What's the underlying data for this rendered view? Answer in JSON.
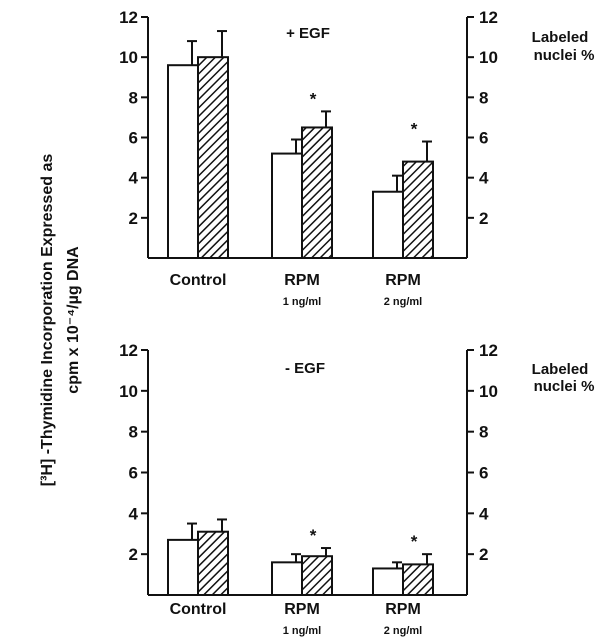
{
  "ylabel_line1": "[³H] -Thymidine Incorporation Expressed as",
  "ylabel_line2": "cpm x 10⁻⁴/µg DNA",
  "colors": {
    "ink": "#111111",
    "open_bar": "#ffffff",
    "hatched_bar": "#ffffff"
  },
  "chart_data": [
    {
      "type": "bar",
      "title": "+ EGF",
      "right_axis_label": [
        "Labeled",
        "nuclei %"
      ],
      "ylim": [
        0,
        12
      ],
      "yticks": [
        2,
        4,
        6,
        8,
        10,
        12
      ],
      "right_yticks": [
        2,
        4,
        6,
        8,
        10,
        12
      ],
      "categories": [
        "Control",
        "RPM",
        "RPM"
      ],
      "category_sublabels": [
        "",
        "1 ng/ml",
        "2 ng/ml"
      ],
      "series": [
        {
          "style": "open",
          "axis": "left",
          "values": [
            9.6,
            5.2,
            3.3
          ],
          "errors": [
            1.2,
            0.7,
            0.8
          ]
        },
        {
          "style": "hatched",
          "axis": "right",
          "values": [
            10.0,
            6.5,
            4.8
          ],
          "errors": [
            1.3,
            0.8,
            1.0
          ]
        }
      ],
      "annotations": [
        {
          "category": 1,
          "series": 1,
          "text": "*"
        },
        {
          "category": 2,
          "series": 1,
          "text": "*"
        }
      ],
      "grid": false
    },
    {
      "type": "bar",
      "title": "- EGF",
      "right_axis_label": [
        "Labeled",
        "nuclei %"
      ],
      "ylim": [
        0,
        12
      ],
      "yticks": [
        2,
        4,
        6,
        8,
        10,
        12
      ],
      "right_yticks": [
        2,
        4,
        6,
        8,
        10,
        12
      ],
      "categories": [
        "Control",
        "RPM",
        "RPM"
      ],
      "category_sublabels": [
        "",
        "1 ng/ml",
        "2 ng/ml"
      ],
      "series": [
        {
          "style": "open",
          "axis": "left",
          "values": [
            2.7,
            1.6,
            1.3
          ],
          "errors": [
            0.8,
            0.4,
            0.3
          ]
        },
        {
          "style": "hatched",
          "axis": "right",
          "values": [
            3.1,
            1.9,
            1.5
          ],
          "errors": [
            0.6,
            0.4,
            0.5
          ]
        }
      ],
      "annotations": [
        {
          "category": 1,
          "series": 1,
          "text": "*"
        },
        {
          "category": 2,
          "series": 1,
          "text": "*"
        }
      ],
      "grid": false
    }
  ]
}
